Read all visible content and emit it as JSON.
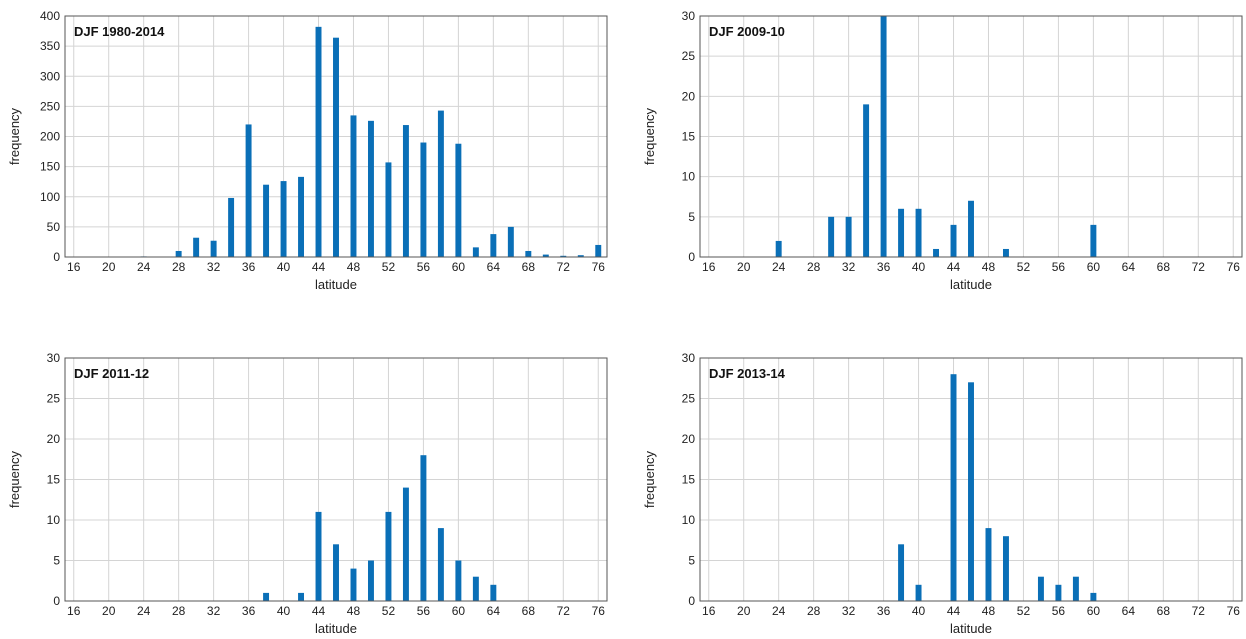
{
  "colors": {
    "bar": "#0a6fb7",
    "grid": "#d4d4d4",
    "frame": "#555555"
  },
  "chart_data": [
    {
      "type": "bar",
      "title": "DJF 1980-2014",
      "xlabel": "latitude",
      "ylabel": "frequency",
      "xlim": [
        15,
        77
      ],
      "ylim": [
        0,
        400
      ],
      "xticks": [
        "16",
        "20",
        "24",
        "28",
        "32",
        "36",
        "40",
        "44",
        "48",
        "52",
        "56",
        "60",
        "64",
        "68",
        "72",
        "76"
      ],
      "yticks": [
        "0",
        "50",
        "100",
        "150",
        "200",
        "250",
        "300",
        "350",
        "400"
      ],
      "x": [
        16,
        18,
        20,
        22,
        24,
        26,
        28,
        30,
        32,
        34,
        36,
        38,
        40,
        42,
        44,
        46,
        48,
        50,
        52,
        54,
        56,
        58,
        60,
        62,
        64,
        66,
        68,
        70,
        72,
        74,
        76
      ],
      "values": [
        0,
        0,
        0,
        0,
        1,
        0,
        10,
        32,
        27,
        98,
        220,
        120,
        126,
        133,
        382,
        364,
        235,
        226,
        157,
        219,
        190,
        243,
        188,
        16,
        38,
        50,
        10,
        4,
        2,
        3,
        20
      ],
      "grid": true
    },
    {
      "type": "bar",
      "title": "DJF 2009-10",
      "xlabel": "latitude",
      "ylabel": "frequency",
      "xlim": [
        15,
        77
      ],
      "ylim": [
        0,
        30
      ],
      "xticks": [
        "16",
        "20",
        "24",
        "28",
        "32",
        "36",
        "40",
        "44",
        "48",
        "52",
        "56",
        "60",
        "64",
        "68",
        "72",
        "76"
      ],
      "yticks": [
        "0",
        "5",
        "10",
        "15",
        "20",
        "25",
        "30"
      ],
      "x": [
        24,
        30,
        32,
        34,
        36,
        38,
        40,
        42,
        44,
        46,
        50,
        60
      ],
      "values": [
        2,
        5,
        5,
        19,
        30,
        6,
        6,
        1,
        4,
        7,
        1,
        4
      ],
      "grid": true
    },
    {
      "type": "bar",
      "title": "DJF 2011-12",
      "xlabel": "latitude",
      "ylabel": "frequency",
      "xlim": [
        15,
        77
      ],
      "ylim": [
        0,
        30
      ],
      "xticks": [
        "16",
        "20",
        "24",
        "28",
        "32",
        "36",
        "40",
        "44",
        "48",
        "52",
        "56",
        "60",
        "64",
        "68",
        "72",
        "76"
      ],
      "yticks": [
        "0",
        "5",
        "10",
        "15",
        "20",
        "25",
        "30"
      ],
      "x": [
        38,
        42,
        44,
        46,
        48,
        50,
        52,
        54,
        56,
        58,
        60,
        62,
        64
      ],
      "values": [
        1,
        1,
        11,
        7,
        4,
        5,
        11,
        14,
        18,
        9,
        5,
        3,
        2
      ],
      "grid": true
    },
    {
      "type": "bar",
      "title": "DJF 2013-14",
      "xlabel": "latitude",
      "ylabel": "frequency",
      "xlim": [
        15,
        77
      ],
      "ylim": [
        0,
        30
      ],
      "xticks": [
        "16",
        "20",
        "24",
        "28",
        "32",
        "36",
        "40",
        "44",
        "48",
        "52",
        "56",
        "60",
        "64",
        "68",
        "72",
        "76"
      ],
      "yticks": [
        "0",
        "5",
        "10",
        "15",
        "20",
        "25",
        "30"
      ],
      "x": [
        38,
        40,
        44,
        46,
        48,
        50,
        54,
        56,
        58,
        60
      ],
      "values": [
        7,
        2,
        28,
        27,
        9,
        8,
        3,
        2,
        3,
        1
      ],
      "grid": true
    }
  ]
}
